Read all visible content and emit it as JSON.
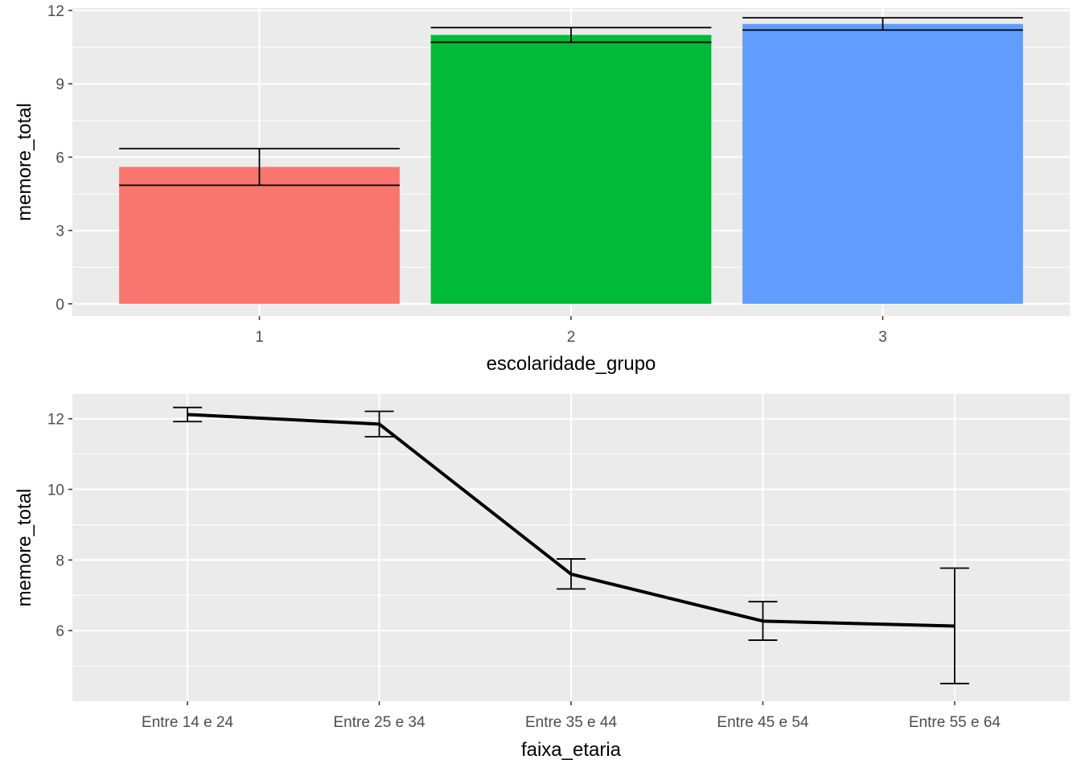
{
  "chart_data": [
    {
      "type": "bar",
      "xlabel": "escolaridade_grupo",
      "ylabel": "memore_total",
      "categories": [
        "1",
        "2",
        "3"
      ],
      "values": [
        5.6,
        11.0,
        11.45
      ],
      "error_low": [
        4.85,
        10.7,
        11.2
      ],
      "error_high": [
        6.35,
        11.3,
        11.7
      ],
      "colors": [
        "#F8766D",
        "#00BA38",
        "#619CFF"
      ],
      "ylim": [
        -0.5,
        12.1
      ],
      "yticks": [
        0,
        3,
        6,
        9,
        12
      ],
      "grid": true,
      "background": "#EBEBEB"
    },
    {
      "type": "line",
      "xlabel": "faixa_etaria",
      "ylabel": "memore_total",
      "categories": [
        "Entre 14 e 24",
        "Entre 25 e 34",
        "Entre 35 e 44",
        "Entre 45 e 54",
        "Entre 55 e 64"
      ],
      "values": [
        12.12,
        11.85,
        7.6,
        6.27,
        6.13
      ],
      "error_low": [
        11.92,
        11.49,
        7.18,
        5.73,
        4.5
      ],
      "error_high": [
        12.32,
        12.21,
        8.03,
        6.82,
        7.77
      ],
      "line_color": "#000000",
      "ylim": [
        4.0,
        12.7
      ],
      "yticks": [
        6,
        8,
        10,
        12
      ],
      "grid": true,
      "background": "#EBEBEB"
    }
  ]
}
